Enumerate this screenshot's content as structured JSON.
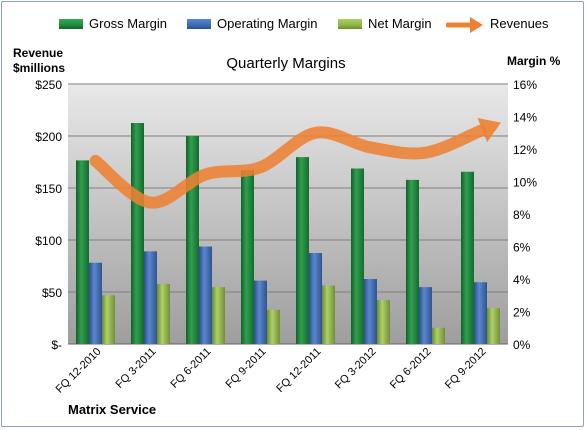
{
  "chart_data": {
    "type": "bar",
    "title": "Quarterly Margins",
    "company": "Matrix Service",
    "y_left_label_line1": "Revenue",
    "y_left_label_line2": "$millions",
    "y_right_label": "Margin %",
    "categories": [
      "FQ 12-2010",
      "FQ 3-2011",
      "FQ 6-2011",
      "FQ 9-2011",
      "FQ 12-2011",
      "FQ 3-2012",
      "FQ 6-2012",
      "FQ 9-2012"
    ],
    "left_ticks": [
      "$-",
      "$50",
      "$100",
      "$150",
      "$200",
      "$250"
    ],
    "right_ticks": [
      "0%",
      "2%",
      "4%",
      "6%",
      "8%",
      "10%",
      "12%",
      "14%",
      "16%"
    ],
    "ylim_left": [
      0,
      250
    ],
    "ylim_right": [
      0,
      16
    ],
    "series": [
      {
        "name": "Gross Margin",
        "axis": "right",
        "color": "#1e8c3c",
        "values": [
          11.3,
          13.6,
          12.8,
          10.7,
          11.5,
          10.8,
          10.1,
          10.6
        ]
      },
      {
        "name": "Operating Margin",
        "axis": "right",
        "color": "#3f6bb5",
        "values": [
          5.0,
          5.7,
          6.0,
          3.9,
          5.6,
          4.0,
          3.5,
          3.8
        ]
      },
      {
        "name": "Net Margin",
        "axis": "right",
        "color": "#8fb846",
        "values": [
          3.0,
          3.7,
          3.5,
          2.1,
          3.6,
          2.7,
          1.0,
          2.2
        ]
      },
      {
        "name": "Revenues",
        "axis": "left",
        "type": "line",
        "color": "#ed8133",
        "values": [
          176,
          136,
          163,
          170,
          203,
          189,
          184,
          205
        ]
      }
    ],
    "grid": true,
    "legend_position": "top"
  }
}
